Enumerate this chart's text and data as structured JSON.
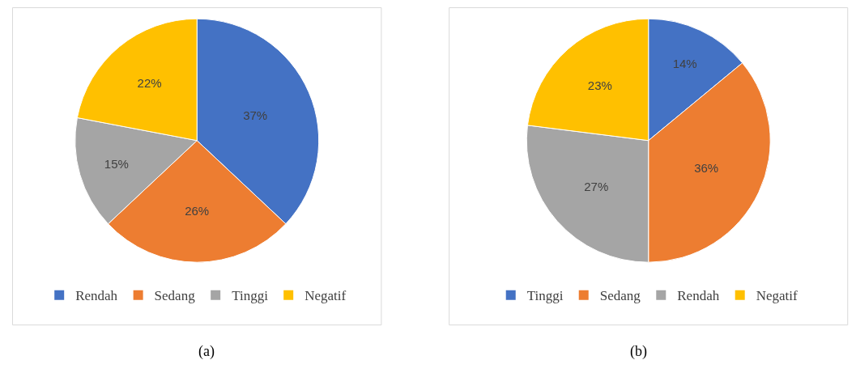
{
  "chart_data": [
    {
      "type": "pie",
      "categories": [
        "Rendah",
        "Sedang",
        "Tinggi",
        "Negatif"
      ],
      "values": [
        37,
        26,
        15,
        22
      ],
      "colors": [
        "#4472c4",
        "#ed7d31",
        "#a5a5a5",
        "#ffc000"
      ],
      "value_labels": [
        "37%",
        "26%",
        "15%",
        "22%"
      ],
      "legend": "bottom",
      "annotations": [
        "(a)"
      ]
    },
    {
      "type": "pie",
      "categories": [
        "Tinggi",
        "Sedang",
        "Rendah",
        "Negatif"
      ],
      "values": [
        14,
        36,
        27,
        23
      ],
      "colors": [
        "#4472c4",
        "#ed7d31",
        "#a5a5a5",
        "#ffc000"
      ],
      "value_labels": [
        "14%",
        "36%",
        "27%",
        "23%"
      ],
      "legend": "bottom",
      "annotations": [
        "(b)"
      ]
    }
  ]
}
